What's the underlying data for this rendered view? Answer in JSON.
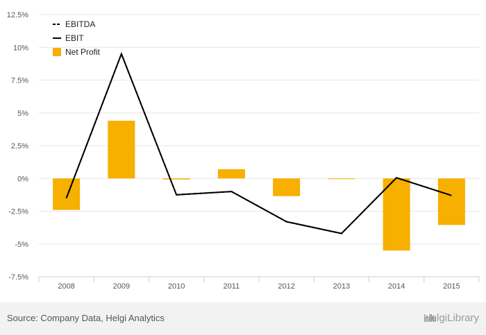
{
  "chart_data": {
    "type": "bar",
    "categories": [
      "2008",
      "2009",
      "2010",
      "2011",
      "2012",
      "2013",
      "2014",
      "2015"
    ],
    "series": [
      {
        "name": "EBITDA",
        "kind": "line",
        "style": "dashed",
        "color": "#000000",
        "values": [
          -1.5,
          9.5,
          -1.25,
          -1.0,
          -3.3,
          -4.2,
          0.05,
          -1.3
        ]
      },
      {
        "name": "EBIT",
        "kind": "line",
        "style": "solid",
        "color": "#000000",
        "values": [
          -1.5,
          9.5,
          -1.25,
          -1.0,
          -3.3,
          -4.2,
          0.05,
          -1.3
        ]
      },
      {
        "name": "Net Profit",
        "kind": "bar",
        "color": "#F7AF00",
        "values": [
          -2.4,
          4.4,
          -0.08,
          0.7,
          -1.35,
          -0.05,
          -5.5,
          -3.55
        ]
      }
    ],
    "y_ticks": [
      "12.5%",
      "10%",
      "7.5%",
      "5%",
      "2.5%",
      "0%",
      "-2.5%",
      "-5%",
      "-7.5%"
    ],
    "ylim": [
      -7.5,
      12.5
    ],
    "grid": true,
    "legend_position": "top-left",
    "title": "",
    "xlabel": "",
    "ylabel": ""
  },
  "footer": {
    "source": "Source: Company Data, Helgi Analytics",
    "brand": "HelgiLibrary",
    "brand_icon": "helgi-library-logo-icon"
  }
}
